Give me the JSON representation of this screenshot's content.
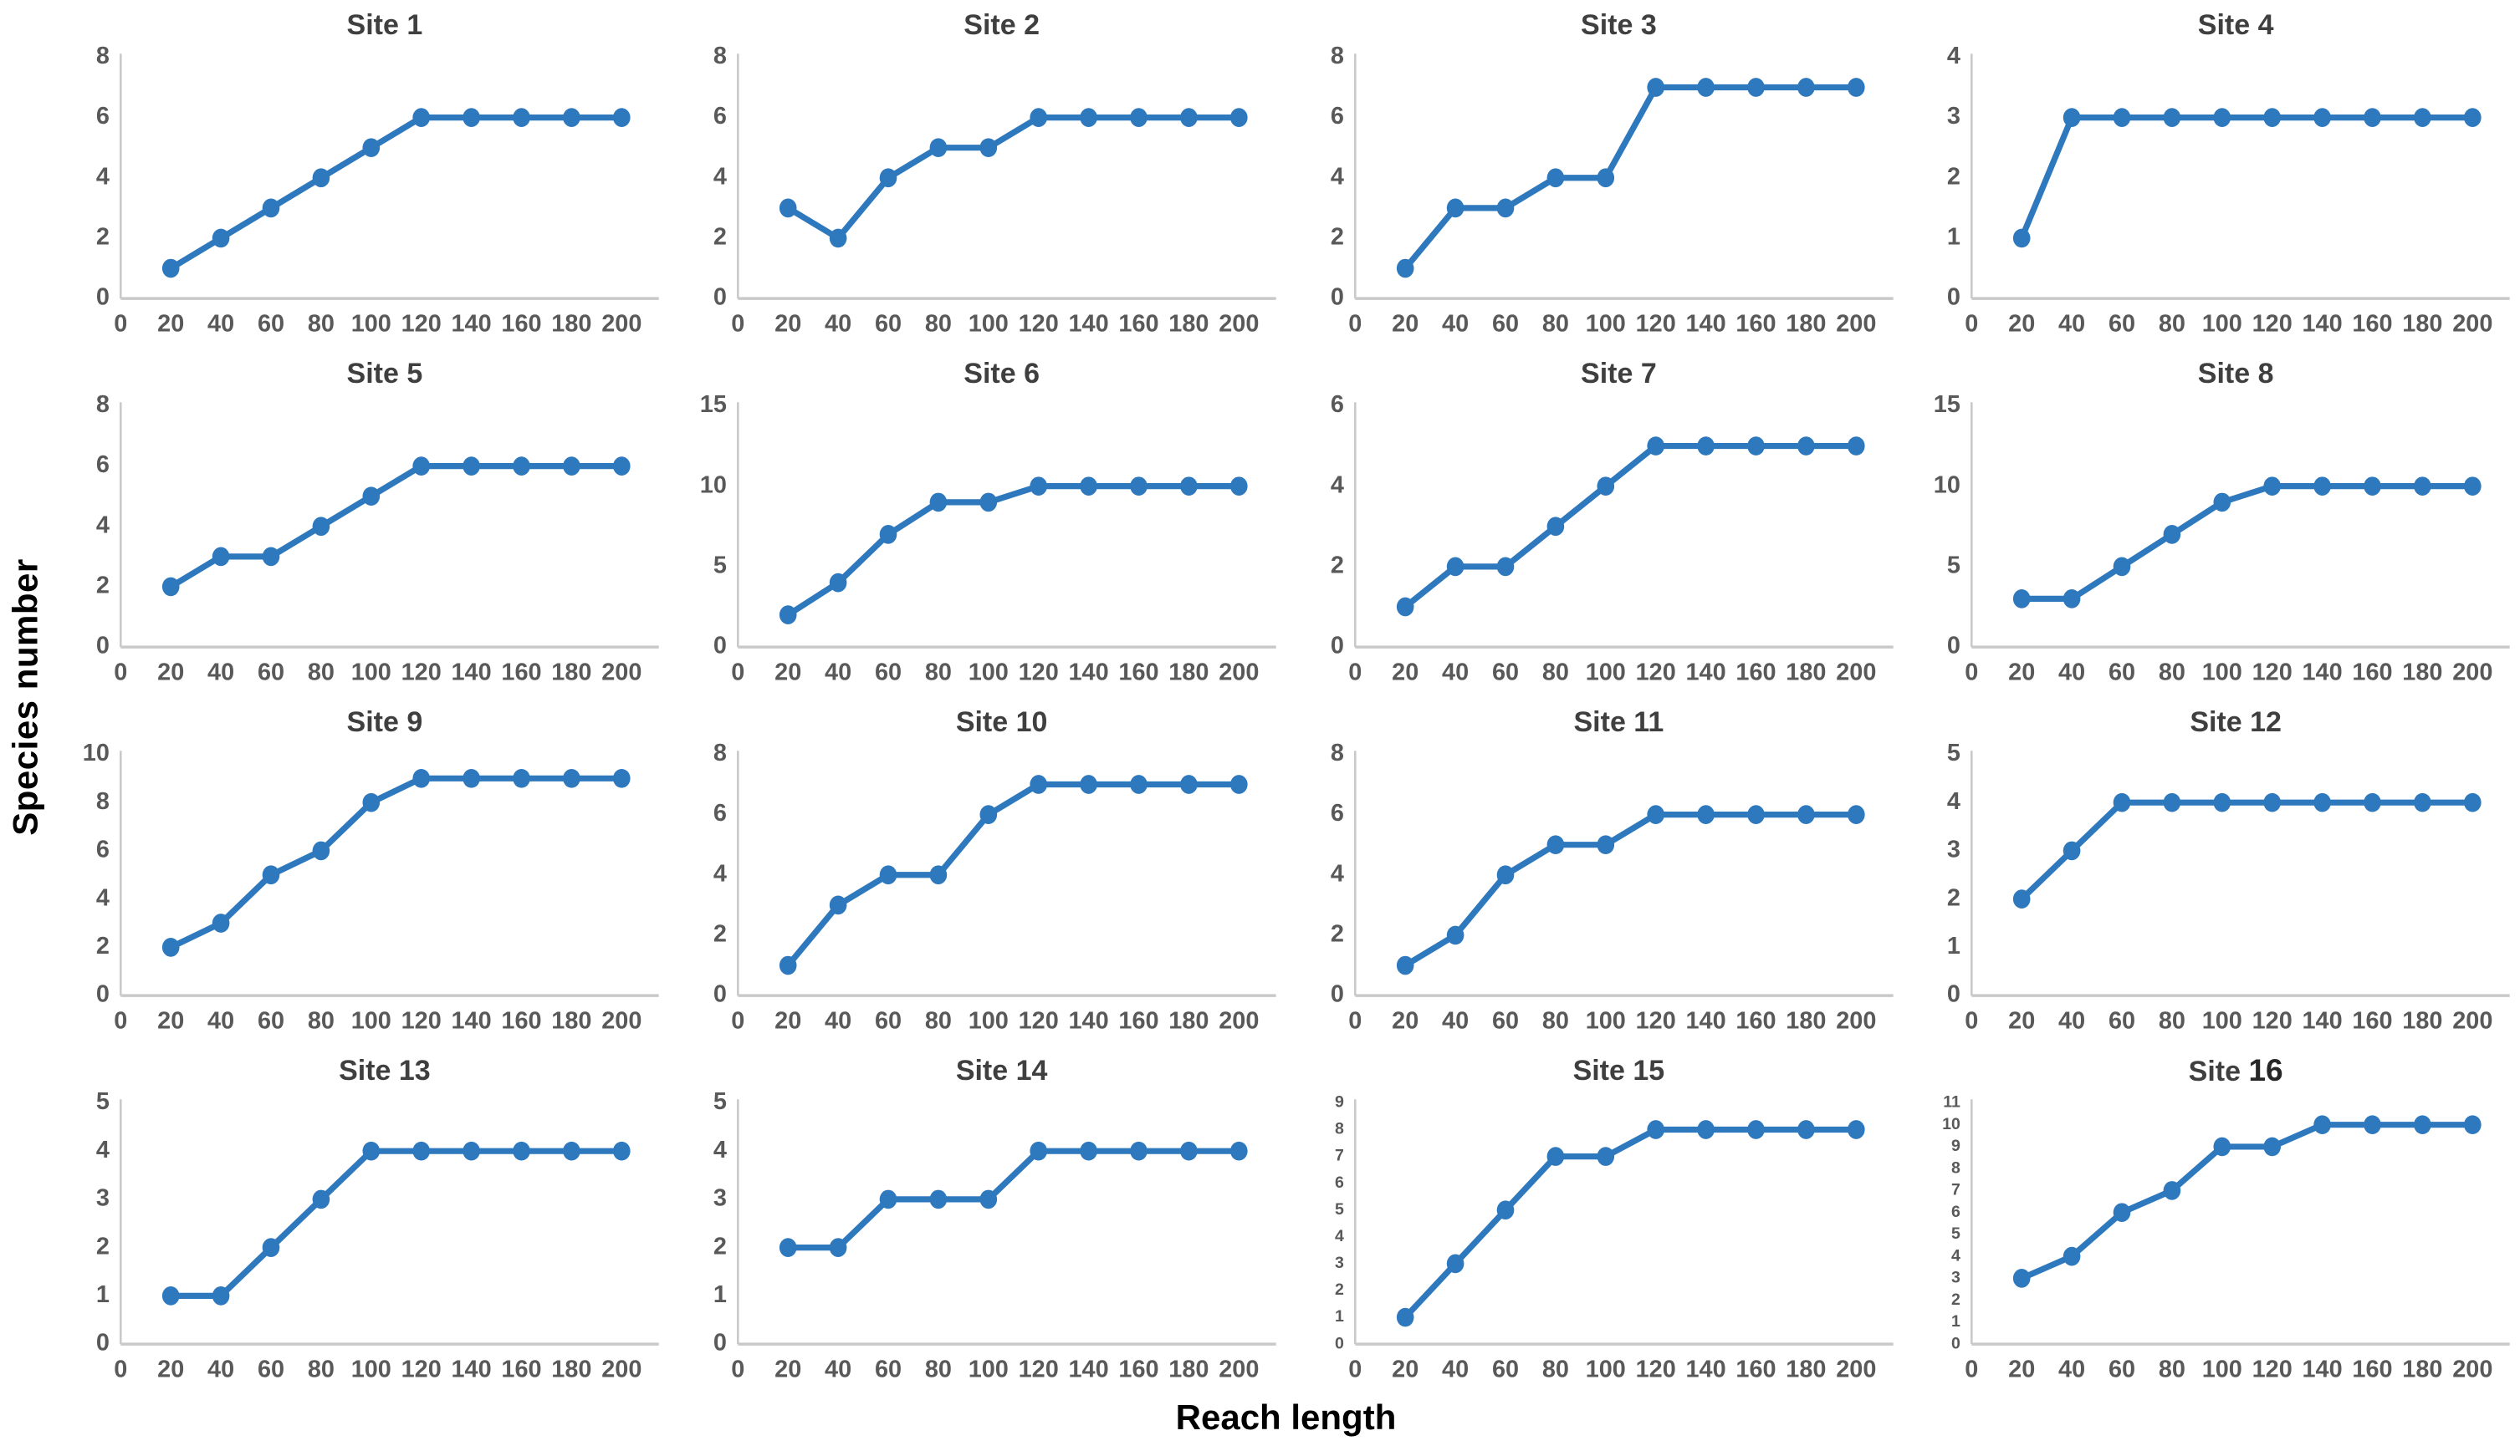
{
  "figure": {
    "ylabel": "Species number",
    "xlabel": "Reach length",
    "line_color": "#2e78be",
    "marker_color": "#2e78be",
    "title_color": "#3f3f3f",
    "tick_color": "#595959",
    "axis_color": "#c9c9c9",
    "background": "#ffffff",
    "grid": "off",
    "legend": "none"
  },
  "chart_data": [
    {
      "type": "line",
      "title": "Site 1",
      "x": [
        20,
        40,
        60,
        80,
        100,
        120,
        140,
        160,
        180,
        200
      ],
      "values": [
        1,
        2,
        3,
        4,
        5,
        6,
        6,
        6,
        6,
        6
      ],
      "ylim": [
        0,
        8
      ],
      "yticks": [
        0,
        2,
        4,
        6,
        8
      ],
      "xticks": [
        0,
        20,
        40,
        60,
        80,
        100,
        120,
        140,
        160,
        180,
        200
      ]
    },
    {
      "type": "line",
      "title": "Site 2",
      "x": [
        20,
        40,
        60,
        80,
        100,
        120,
        140,
        160,
        180,
        200
      ],
      "values": [
        3,
        2,
        4,
        5,
        5,
        6,
        6,
        6,
        6,
        6
      ],
      "ylim": [
        0,
        8
      ],
      "yticks": [
        0,
        2,
        4,
        6,
        8
      ],
      "xticks": [
        0,
        20,
        40,
        60,
        80,
        100,
        120,
        140,
        160,
        180,
        200
      ]
    },
    {
      "type": "line",
      "title": "Site 3",
      "x": [
        20,
        40,
        60,
        80,
        100,
        120,
        140,
        160,
        180,
        200
      ],
      "values": [
        1,
        3,
        3,
        4,
        4,
        7,
        7,
        7,
        7,
        7
      ],
      "ylim": [
        0,
        8
      ],
      "yticks": [
        0,
        2,
        4,
        6,
        8
      ],
      "xticks": [
        0,
        20,
        40,
        60,
        80,
        100,
        120,
        140,
        160,
        180,
        200
      ]
    },
    {
      "type": "line",
      "title": "Site 4",
      "x": [
        20,
        40,
        60,
        80,
        100,
        120,
        140,
        160,
        180,
        200
      ],
      "values": [
        1,
        3,
        3,
        3,
        3,
        3,
        3,
        3,
        3,
        3
      ],
      "ylim": [
        0,
        4
      ],
      "yticks": [
        0,
        1,
        2,
        3,
        4
      ],
      "xticks": [
        0,
        20,
        40,
        60,
        80,
        100,
        120,
        140,
        160,
        180,
        200
      ]
    },
    {
      "type": "line",
      "title": "Site 5",
      "x": [
        20,
        40,
        60,
        80,
        100,
        120,
        140,
        160,
        180,
        200
      ],
      "values": [
        2,
        3,
        3,
        4,
        5,
        6,
        6,
        6,
        6,
        6
      ],
      "ylim": [
        0,
        8
      ],
      "yticks": [
        0,
        2,
        4,
        6,
        8
      ],
      "xticks": [
        0,
        20,
        40,
        60,
        80,
        100,
        120,
        140,
        160,
        180,
        200
      ]
    },
    {
      "type": "line",
      "title": "Site 6",
      "x": [
        20,
        40,
        60,
        80,
        100,
        120,
        140,
        160,
        180,
        200
      ],
      "values": [
        2,
        4,
        7,
        9,
        9,
        10,
        10,
        10,
        10,
        10
      ],
      "ylim": [
        0,
        15
      ],
      "yticks": [
        0,
        5,
        10,
        15
      ],
      "xticks": [
        0,
        20,
        40,
        60,
        80,
        100,
        120,
        140,
        160,
        180,
        200
      ]
    },
    {
      "type": "line",
      "title": "Site 7",
      "x": [
        20,
        40,
        60,
        80,
        100,
        120,
        140,
        160,
        180,
        200
      ],
      "values": [
        1,
        2,
        2,
        3,
        4,
        5,
        5,
        5,
        5,
        5
      ],
      "ylim": [
        0,
        6
      ],
      "yticks": [
        0,
        2,
        4,
        6
      ],
      "xticks": [
        0,
        20,
        40,
        60,
        80,
        100,
        120,
        140,
        160,
        180,
        200
      ]
    },
    {
      "type": "line",
      "title": "Site 8",
      "x": [
        20,
        40,
        60,
        80,
        100,
        120,
        140,
        160,
        180,
        200
      ],
      "values": [
        3,
        3,
        5,
        7,
        9,
        10,
        10,
        10,
        10,
        10
      ],
      "ylim": [
        0,
        15
      ],
      "yticks": [
        0,
        5,
        10,
        15
      ],
      "xticks": [
        0,
        20,
        40,
        60,
        80,
        100,
        120,
        140,
        160,
        180,
        200
      ]
    },
    {
      "type": "line",
      "title": "Site 9",
      "x": [
        20,
        40,
        60,
        80,
        100,
        120,
        140,
        160,
        180,
        200
      ],
      "values": [
        2,
        3,
        5,
        6,
        8,
        9,
        9,
        9,
        9,
        9
      ],
      "ylim": [
        0,
        10
      ],
      "yticks": [
        0,
        2,
        4,
        6,
        8,
        10
      ],
      "xticks": [
        0,
        20,
        40,
        60,
        80,
        100,
        120,
        140,
        160,
        180,
        200
      ]
    },
    {
      "type": "line",
      "title": "Site 10",
      "x": [
        20,
        40,
        60,
        80,
        100,
        120,
        140,
        160,
        180,
        200
      ],
      "values": [
        1,
        3,
        4,
        4,
        6,
        7,
        7,
        7,
        7,
        7
      ],
      "ylim": [
        0,
        8
      ],
      "yticks": [
        0,
        2,
        4,
        6,
        8
      ],
      "xticks": [
        0,
        20,
        40,
        60,
        80,
        100,
        120,
        140,
        160,
        180,
        200
      ]
    },
    {
      "type": "line",
      "title": "Site 11",
      "x": [
        20,
        40,
        60,
        80,
        100,
        120,
        140,
        160,
        180,
        200
      ],
      "values": [
        1,
        2,
        4,
        5,
        5,
        6,
        6,
        6,
        6,
        6
      ],
      "ylim": [
        0,
        8
      ],
      "yticks": [
        0,
        2,
        4,
        6,
        8
      ],
      "xticks": [
        0,
        20,
        40,
        60,
        80,
        100,
        120,
        140,
        160,
        180,
        200
      ]
    },
    {
      "type": "line",
      "title": "Site 12",
      "x": [
        20,
        40,
        60,
        80,
        100,
        120,
        140,
        160,
        180,
        200
      ],
      "values": [
        2,
        3,
        4,
        4,
        4,
        4,
        4,
        4,
        4,
        4
      ],
      "ylim": [
        0,
        5
      ],
      "yticks": [
        0,
        1,
        2,
        3,
        4,
        5
      ],
      "xticks": [
        0,
        20,
        40,
        60,
        80,
        100,
        120,
        140,
        160,
        180,
        200
      ]
    },
    {
      "type": "line",
      "title": "Site 13",
      "x": [
        20,
        40,
        60,
        80,
        100,
        120,
        140,
        160,
        180,
        200
      ],
      "values": [
        1,
        1,
        2,
        3,
        4,
        4,
        4,
        4,
        4,
        4
      ],
      "ylim": [
        0,
        5
      ],
      "yticks": [
        0,
        1,
        2,
        3,
        4,
        5
      ],
      "xticks": [
        0,
        20,
        40,
        60,
        80,
        100,
        120,
        140,
        160,
        180,
        200
      ]
    },
    {
      "type": "line",
      "title": "Site 14",
      "x": [
        20,
        40,
        60,
        80,
        100,
        120,
        140,
        160,
        180,
        200
      ],
      "values": [
        2,
        2,
        3,
        3,
        3,
        4,
        4,
        4,
        4,
        4
      ],
      "ylim": [
        0,
        5
      ],
      "yticks": [
        0,
        1,
        2,
        3,
        4,
        5
      ],
      "xticks": [
        0,
        20,
        40,
        60,
        80,
        100,
        120,
        140,
        160,
        180,
        200
      ]
    },
    {
      "type": "line",
      "title": "Site 15",
      "x": [
        20,
        40,
        60,
        80,
        100,
        120,
        140,
        160,
        180,
        200
      ],
      "values": [
        1,
        3,
        5,
        7,
        7,
        8,
        8,
        8,
        8,
        8
      ],
      "ylim": [
        0,
        9
      ],
      "yticks": [
        0,
        1,
        2,
        3,
        4,
        5,
        6,
        7,
        8,
        9
      ],
      "xticks": [
        0,
        20,
        40,
        60,
        80,
        100,
        120,
        140,
        160,
        180,
        200
      ]
    },
    {
      "type": "line",
      "title": "Site 16",
      "bold_number": true,
      "x": [
        20,
        40,
        60,
        80,
        100,
        120,
        140,
        160,
        180,
        200
      ],
      "values": [
        3,
        4,
        6,
        7,
        9,
        9,
        10,
        10,
        10,
        10
      ],
      "ylim": [
        0,
        11
      ],
      "yticks": [
        0,
        1,
        2,
        3,
        4,
        5,
        6,
        7,
        8,
        9,
        10,
        11
      ],
      "xticks": [
        0,
        20,
        40,
        60,
        80,
        100,
        120,
        140,
        160,
        180,
        200
      ]
    }
  ]
}
